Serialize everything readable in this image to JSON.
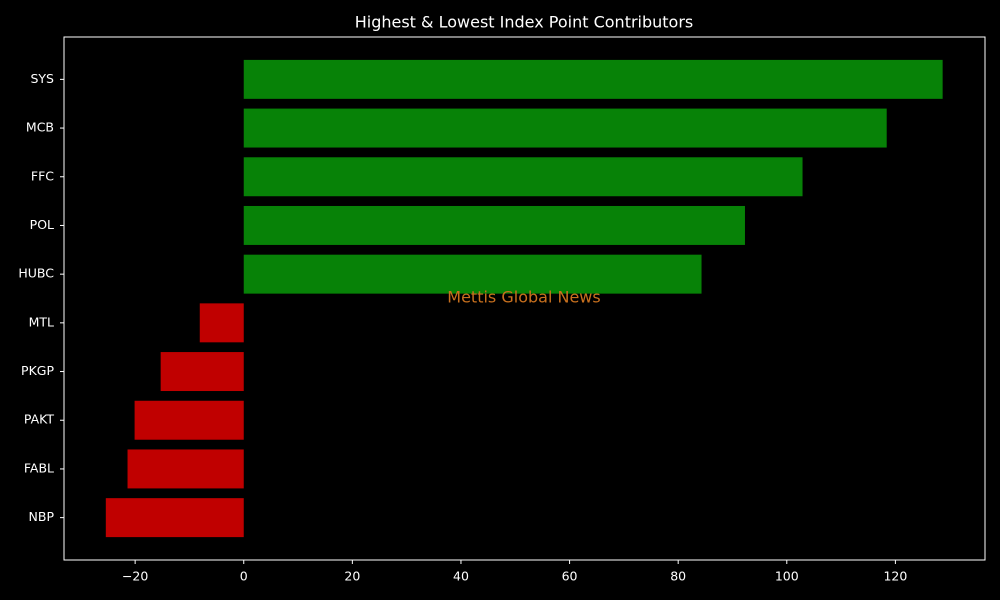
{
  "chart_data": {
    "type": "barh",
    "title": "Highest & Lowest Index Point Contributors",
    "annotation": "Mettis Global News",
    "categories": [
      "SYS",
      "MCB",
      "FFC",
      "POL",
      "HUBC",
      "MTL",
      "PKGP",
      "PAKT",
      "FABL",
      "NBP"
    ],
    "values": [
      128.7,
      118.4,
      102.9,
      92.3,
      84.3,
      -8.1,
      -15.3,
      -20.1,
      -21.4,
      -25.4
    ],
    "colors": [
      "#078207",
      "#078207",
      "#078207",
      "#078207",
      "#078207",
      "#c00000",
      "#c00000",
      "#c00000",
      "#c00000",
      "#c00000"
    ],
    "xlim": [
      -33.1,
      136.5
    ],
    "xticks": [
      {
        "value": -20,
        "label": "−20"
      },
      0,
      20,
      40,
      60,
      80,
      100,
      120
    ]
  }
}
